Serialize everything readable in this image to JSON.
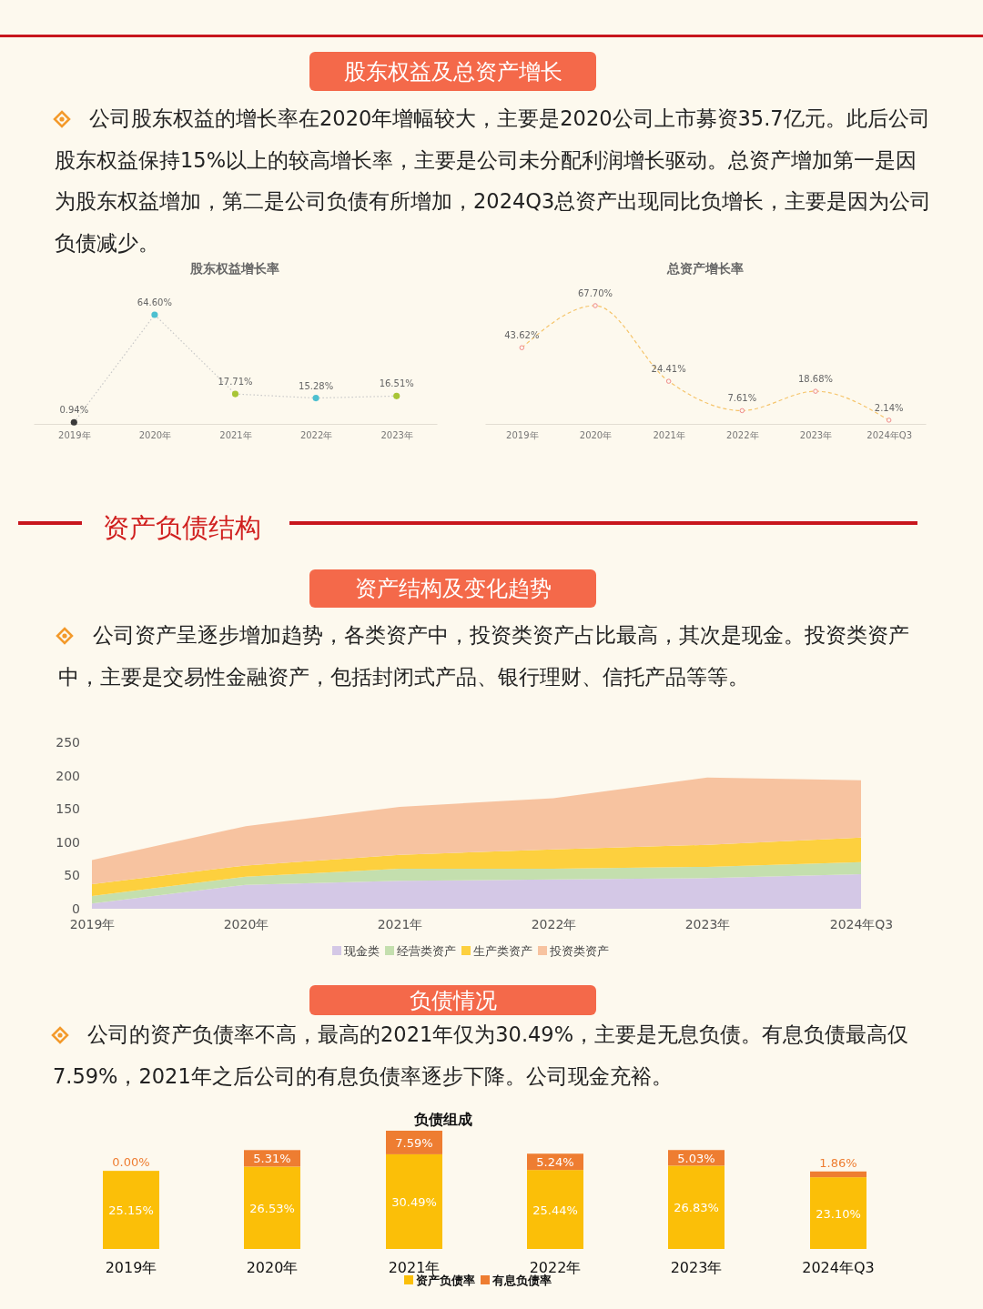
{
  "chart_data": [
    {
      "type": "line",
      "title": "股东权益增长率",
      "annotations": [
        "股东权益及总资产增长",
        "公司股东权益的增长率在2020年增幅较大，主要是2020公司上市募资35.7亿元。此后公司股东权益保持15%以上的较高增长率，主要是公司未分配利润增长驱动。总资产增加第一是因为股东权益增加，第二是公司负债有所增加，2024Q3总资产出现同比负增长，主要是因为公司负债减少。"
      ],
      "categories": [
        "2019年",
        "2020年",
        "2021年",
        "2022年",
        "2023年"
      ],
      "series": [
        {
          "color": "#c8c8c8",
          "colors": [
            "#3a3a3a",
            "#4dc0d0",
            "#a8c536",
            "#4dc0d0",
            "#a8c536"
          ],
          "values": [
            0.94,
            64.6,
            17.71,
            15.28,
            16.51
          ],
          "value_labels": [
            "0.94%",
            "64.60%",
            "17.71%",
            "15.28%",
            "16.51%"
          ]
        }
      ],
      "marker": "circle",
      "line_style": "dotted"
    },
    {
      "type": "line",
      "title": "总资产增长率",
      "categories": [
        "2019年",
        "2020年",
        "2021年",
        "2022年",
        "2023年",
        "2024年Q3"
      ],
      "series": [
        {
          "color": "#f5c46a",
          "colors": [
            "#f08a8a",
            "#f08a8a",
            "#f08a8a",
            "#f08a8a",
            "#f08a8a",
            "#f08a8a"
          ],
          "values": [
            43.62,
            67.7,
            24.41,
            7.61,
            18.68,
            2.14
          ],
          "value_labels": [
            "43.62%",
            "67.70%",
            "24.41%",
            "7.61%",
            "18.68%",
            "2.14%"
          ]
        }
      ],
      "marker": "circle",
      "line_style": "dashed"
    },
    {
      "type": "area",
      "title": "资产结构及变化趋势",
      "subtitle": "公司资产呈逐步增加趋势，各类资产中，投资类资产占比最高，其次是现金。投资类资产中，主要是交易性金融资产，包括封闭式产品、银行理财、信托产品等等。",
      "annotations": [
        "资产负债结构"
      ],
      "categories": [
        "2019年",
        "2020年",
        "2021年",
        "2022年",
        "2023年",
        "2024年Q3"
      ],
      "series": [
        {
          "name": "现金类",
          "color": "#d4c8e6",
          "values": [
            8,
            36,
            42,
            44,
            46,
            52
          ]
        },
        {
          "name": "经营类资产",
          "color": "#c4dfae",
          "values": [
            11,
            12,
            18,
            16,
            17,
            18
          ]
        },
        {
          "name": "生产类资产",
          "color": "#fdd03e",
          "values": [
            18,
            17,
            21,
            29,
            33,
            37
          ]
        },
        {
          "name": "投资类资产",
          "color": "#f7c3a0",
          "values": [
            36,
            59,
            72,
            77,
            101,
            86
          ]
        }
      ],
      "stacked": true,
      "ylim": [
        0,
        250
      ],
      "yticks": [
        0,
        50,
        100,
        150,
        200,
        250
      ],
      "grid": false,
      "legend": "bottom"
    },
    {
      "type": "bar",
      "title": "负债组成",
      "annotations": [
        "负债情况",
        "公司的资产负债率不高，最高的2021年仅为30.49%，主要是无息负债。有息负债最高仅7.59%，2021年之后公司的有息负债率逐步下降。公司现金充裕。"
      ],
      "categories": [
        "2019年",
        "2020年",
        "2021年",
        "2022年",
        "2023年",
        "2024年Q3"
      ],
      "series": [
        {
          "name": "资产负债率",
          "color": "#fbbf08",
          "values": [
            25.15,
            26.53,
            30.49,
            25.44,
            26.83,
            23.1
          ],
          "value_labels": [
            "25.15%",
            "26.53%",
            "30.49%",
            "25.44%",
            "26.83%",
            "23.10%"
          ]
        },
        {
          "name": "有息负债率",
          "color": "#ee7d31",
          "values": [
            0,
            5.31,
            7.59,
            5.24,
            5.03,
            1.86
          ],
          "value_labels": [
            "0.00%",
            "5.31%",
            "7.59%",
            "5.24%",
            "5.03%",
            "1.86%"
          ]
        }
      ],
      "stacked": true,
      "legend": "bottom"
    }
  ]
}
